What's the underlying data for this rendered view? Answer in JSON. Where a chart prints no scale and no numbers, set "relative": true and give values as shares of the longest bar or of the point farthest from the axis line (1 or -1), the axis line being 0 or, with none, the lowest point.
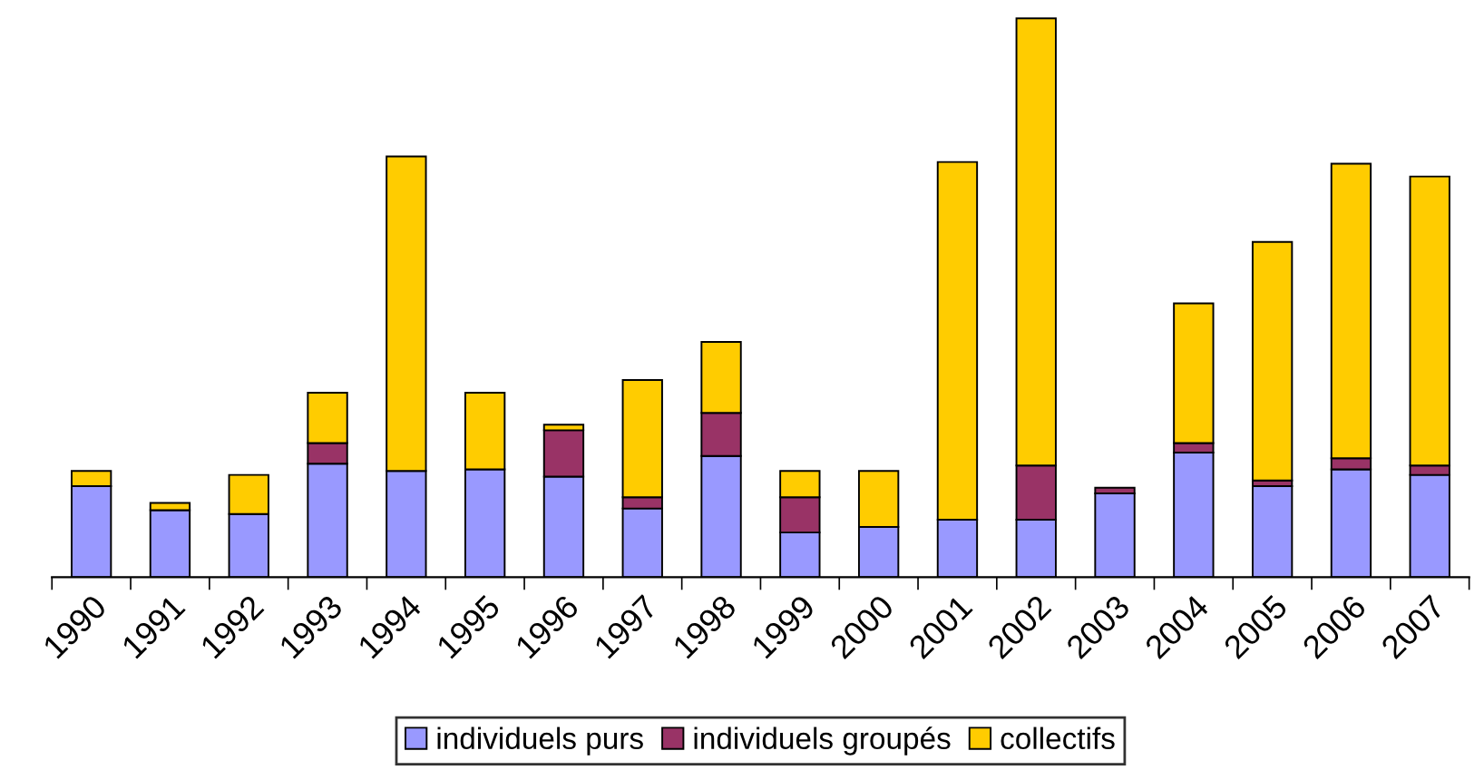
{
  "chart_data": {
    "type": "bar",
    "stacked": true,
    "relative": true,
    "legend": "bottom",
    "grid": false,
    "categories": [
      "1990",
      "1991",
      "1992",
      "1993",
      "1994",
      "1995",
      "1996",
      "1997",
      "1998",
      "1999",
      "2000",
      "2001",
      "2002",
      "2003",
      "2004",
      "2005",
      "2006",
      "2007"
    ],
    "series": [
      {
        "name": "individuels purs",
        "color": "#9999ff",
        "values": [
          0.163,
          0.12,
          0.113,
          0.203,
          0.19,
          0.193,
          0.18,
          0.123,
          0.217,
          0.08,
          0.09,
          0.103,
          0.103,
          0.15,
          0.223,
          0.163,
          0.193,
          0.183
        ]
      },
      {
        "name": "individuels groupés",
        "color": "#993366",
        "values": [
          0,
          0,
          0,
          0.037,
          0,
          0,
          0.083,
          0.02,
          0.077,
          0.063,
          0,
          0,
          0.097,
          0.01,
          0.017,
          0.01,
          0.02,
          0.017
        ]
      },
      {
        "name": "collectifs",
        "color": "#ffcc00",
        "values": [
          0.027,
          0.013,
          0.07,
          0.09,
          0.563,
          0.137,
          0.01,
          0.21,
          0.127,
          0.047,
          0.1,
          0.64,
          0.8,
          0,
          0.25,
          0.427,
          0.527,
          0.517
        ]
      }
    ]
  }
}
